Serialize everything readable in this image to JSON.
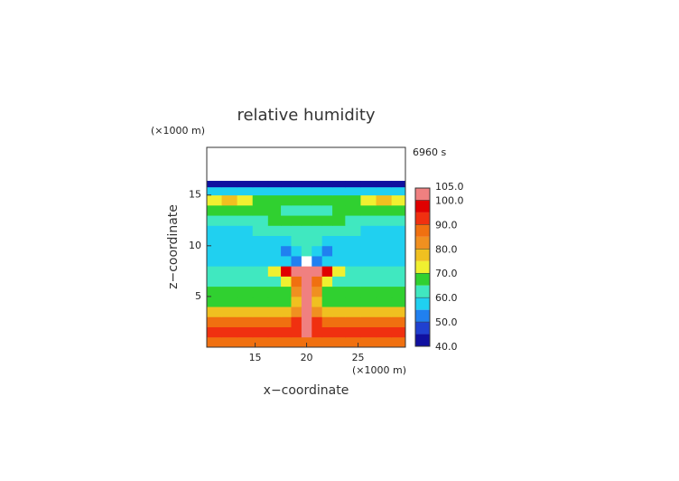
{
  "chart_data": {
    "type": "contour",
    "title": "relative humidity",
    "time_label": "6960 s",
    "x_label": "x−coordinate",
    "y_label": "z−coordinate",
    "x_unit": "(×1000 m)",
    "y_unit": "(×1000 m)",
    "xlim": [
      10.3,
      29.6
    ],
    "ylim": [
      0,
      19.7
    ],
    "xticks": [
      15,
      20,
      25
    ],
    "yticks": [
      5,
      10,
      15
    ],
    "x": [
      11,
      12.5,
      14,
      15.5,
      17,
      18,
      19,
      20,
      21,
      22,
      23,
      24.5,
      26,
      27.5,
      29
    ],
    "y": [
      0.5,
      1.5,
      2.5,
      3.5,
      4.5,
      5.5,
      6.5,
      7.5,
      8.5,
      9.5,
      10.5,
      11.5,
      12.5,
      13.5,
      14.5,
      15.5,
      16.1
    ],
    "z": [
      [
        87,
        87,
        87,
        87,
        87,
        87,
        87,
        88,
        87,
        87,
        87,
        87,
        87,
        87,
        87
      ],
      [
        92,
        92,
        92,
        92,
        92,
        92,
        93,
        100,
        93,
        92,
        92,
        92,
        92,
        92,
        92
      ],
      [
        88,
        88,
        88,
        88,
        88,
        88,
        90,
        100,
        90,
        88,
        88,
        88,
        88,
        88,
        88
      ],
      [
        76,
        76,
        76,
        76,
        76,
        76,
        82,
        100,
        82,
        76,
        76,
        76,
        76,
        76,
        76
      ],
      [
        68,
        68,
        68,
        68,
        68,
        69,
        78,
        100,
        78,
        69,
        68,
        68,
        68,
        68,
        68
      ],
      [
        66,
        66,
        66,
        66,
        66,
        68,
        80,
        100,
        80,
        68,
        66,
        66,
        66,
        66,
        66
      ],
      [
        64,
        64,
        64,
        64,
        64,
        70,
        88,
        101,
        88,
        70,
        64,
        64,
        64,
        64,
        64
      ],
      [
        63,
        63,
        63,
        63,
        74,
        97,
        100,
        101,
        100,
        97,
        74,
        63,
        63,
        63,
        63
      ],
      [
        58,
        58,
        58,
        58,
        58,
        56,
        52,
        106,
        52,
        56,
        58,
        58,
        58,
        58,
        58
      ],
      [
        56,
        56,
        56,
        56,
        56,
        54,
        56,
        60,
        56,
        54,
        56,
        56,
        56,
        56,
        56
      ],
      [
        56,
        56,
        56,
        57,
        58,
        57,
        60,
        62,
        60,
        57,
        58,
        57,
        56,
        56,
        56
      ],
      [
        57,
        57,
        58,
        60,
        61,
        61,
        62,
        62,
        62,
        61,
        61,
        60,
        58,
        57,
        57
      ],
      [
        62,
        62,
        63,
        64,
        65,
        66,
        66,
        66,
        66,
        66,
        65,
        64,
        63,
        62,
        62
      ],
      [
        66,
        66,
        66,
        66,
        66,
        64,
        64,
        64,
        64,
        64,
        66,
        66,
        66,
        66,
        66
      ],
      [
        74,
        79,
        72,
        68,
        66,
        66,
        66,
        66,
        66,
        66,
        66,
        68,
        72,
        79,
        74
      ],
      [
        58,
        58,
        58,
        58,
        58,
        58,
        58,
        58,
        58,
        58,
        58,
        58,
        58,
        58,
        58
      ],
      [
        43,
        43,
        43,
        44,
        44,
        44,
        44,
        44,
        44,
        44,
        44,
        44,
        43,
        43,
        43
      ]
    ],
    "levels": [
      40,
      45,
      50,
      55,
      60,
      65,
      70,
      75,
      80,
      85,
      90,
      95,
      100,
      105
    ],
    "colors": [
      "#1010a0",
      "#2040d0",
      "#2080f0",
      "#20d0f0",
      "#40e8c0",
      "#30d030",
      "#f0f030",
      "#f0c020",
      "#f09020",
      "#f07010",
      "#f03010",
      "#e00000",
      "#f08080"
    ],
    "cticks": [
      {
        "value": 40,
        "label": "40.0"
      },
      {
        "value": 50,
        "label": "50.0"
      },
      {
        "value": 60,
        "label": "60.0"
      },
      {
        "value": 70,
        "label": "70.0"
      },
      {
        "value": 80,
        "label": "80.0"
      },
      {
        "value": 90,
        "label": "90.0"
      },
      {
        "value": 100,
        "label": "100.0"
      },
      {
        "value": 105,
        "label": "105.0"
      }
    ]
  }
}
